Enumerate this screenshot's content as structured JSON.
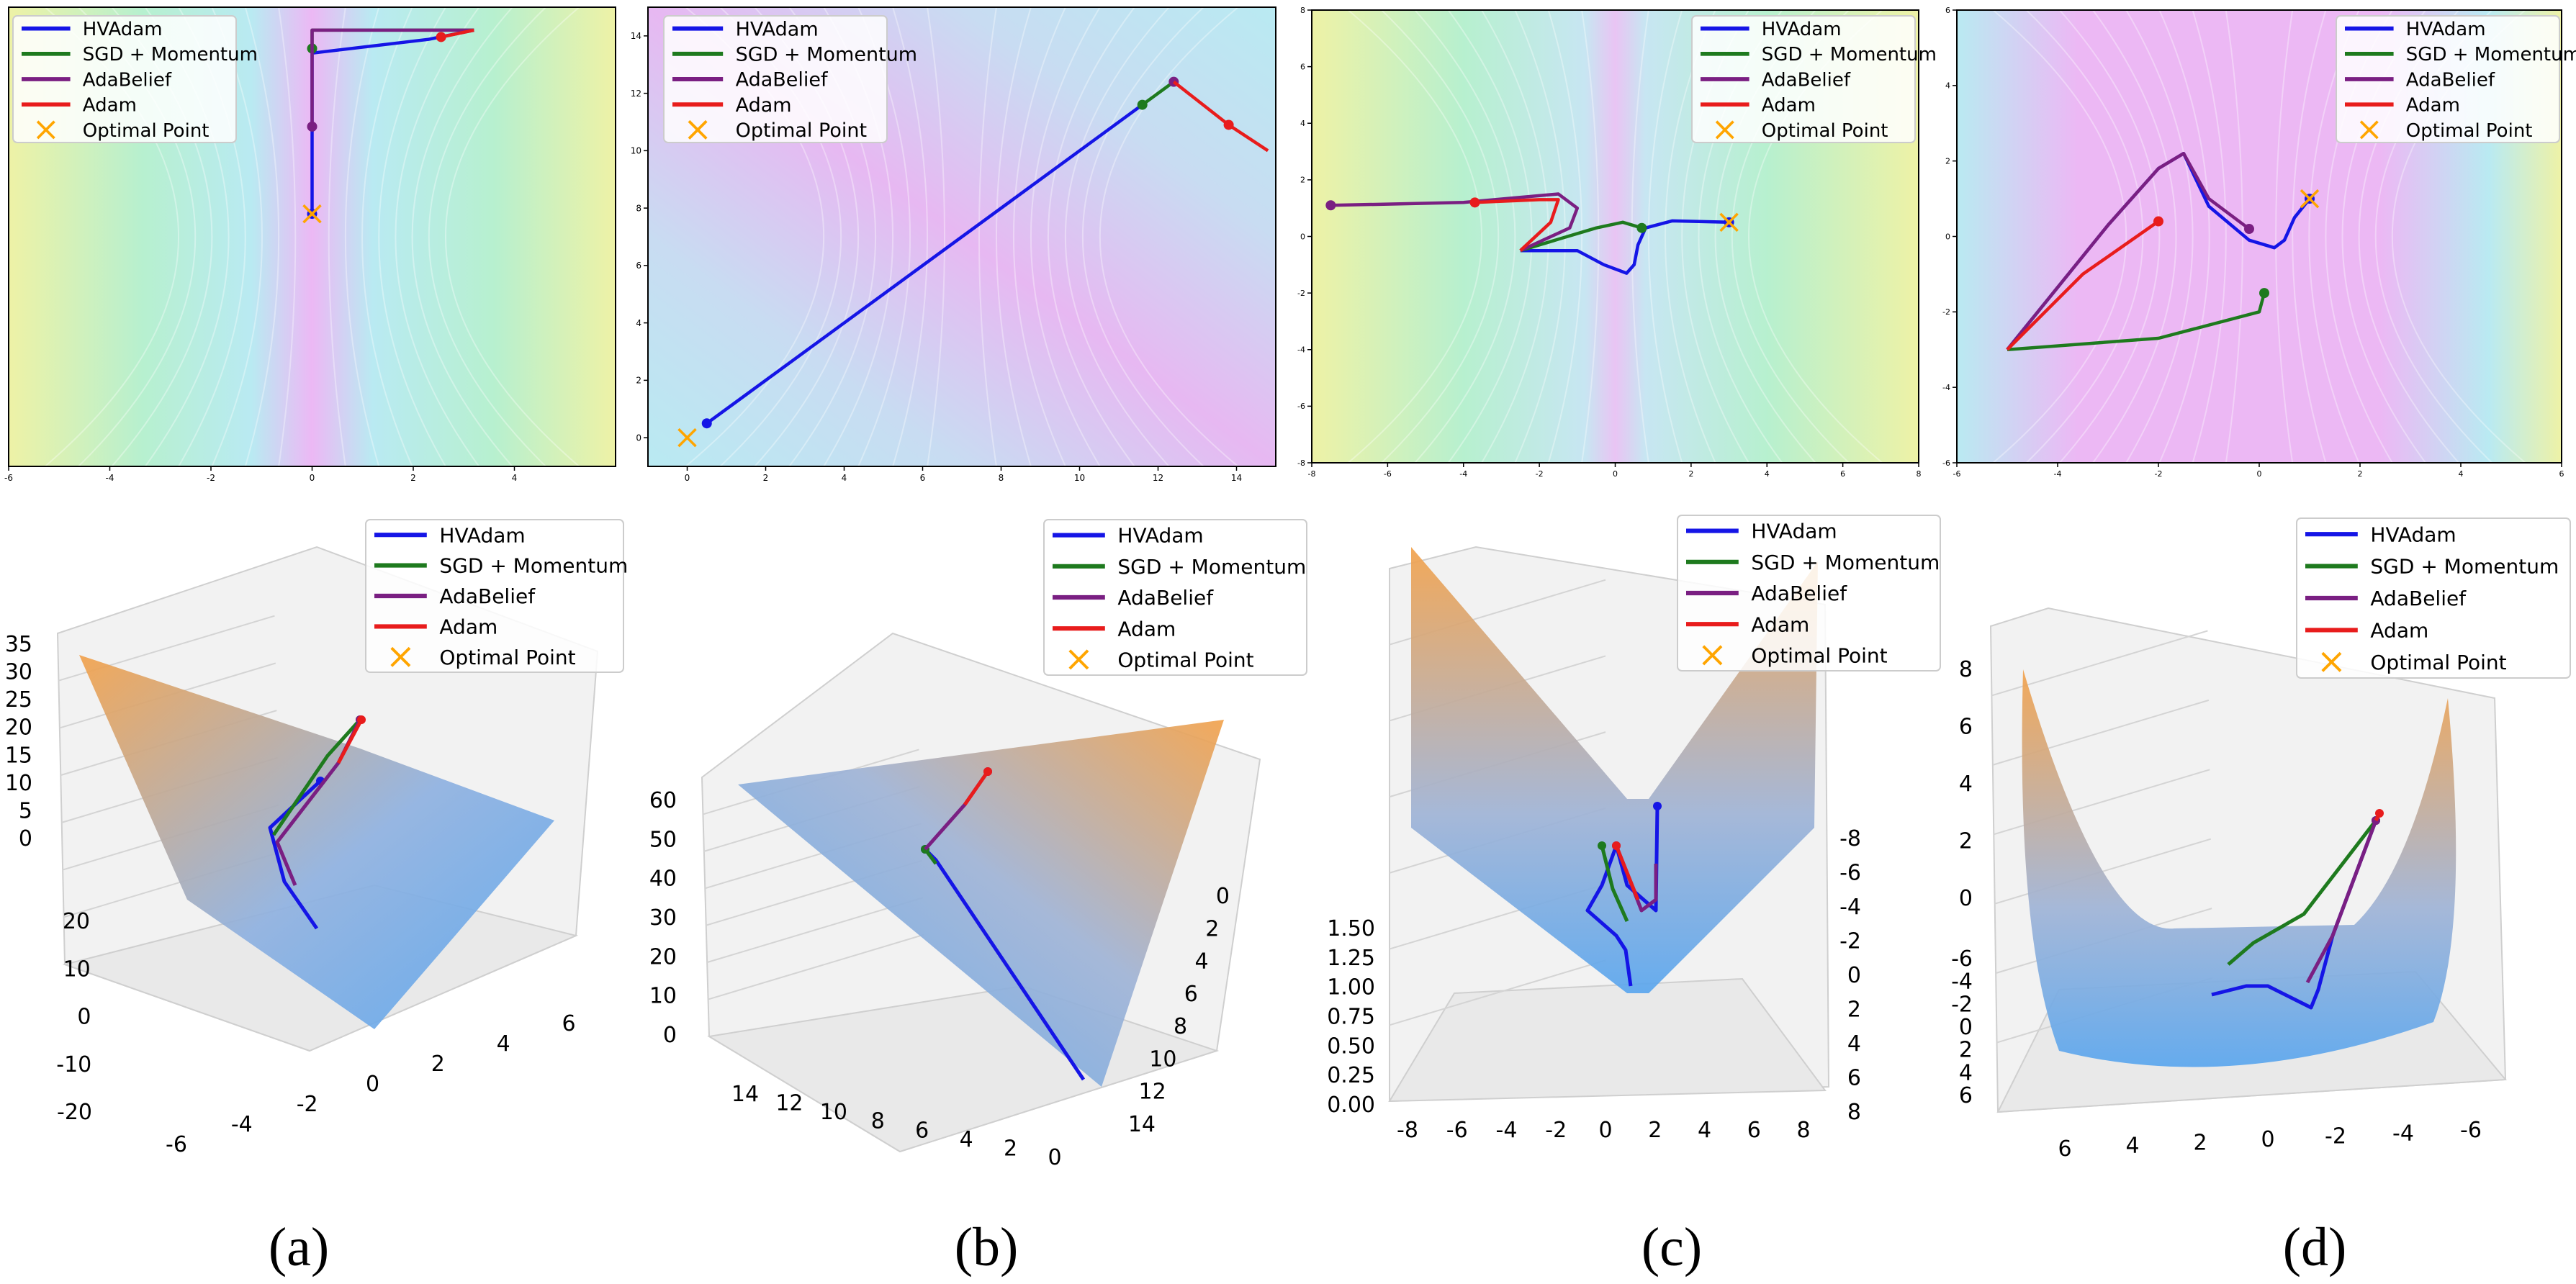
{
  "legend_labels": [
    "HVAdam",
    "SGD + Momentum",
    "AdaBelief",
    "Adam",
    "Optimal Point"
  ],
  "series_colors": {
    "HVAdam": "#1515e6",
    "SGD + Momentum": "#1e7a1e",
    "AdaBelief": "#7a1f82",
    "Adam": "#e81c1c",
    "Optimal Point": "#ffa500"
  },
  "captions": [
    "(a)",
    "(b)",
    "(c)",
    "(d)"
  ],
  "chart_data": [
    {
      "type": "line",
      "panel": "a",
      "view": "contour",
      "title": "",
      "xlabel": "",
      "ylabel": "",
      "xlim": [
        -6,
        6
      ],
      "ylim": [
        -7.5,
        2.5
      ],
      "xticks": [
        "-6",
        "-4",
        "-2",
        "0",
        "2",
        "4"
      ],
      "yticks": [],
      "optimal_point": [
        0,
        -2
      ],
      "series": [
        {
          "name": "HVAdam",
          "x": [
            0,
            0,
            2.3,
            3.2
          ],
          "y": [
            -2,
            1.5,
            1.8,
            2.0
          ],
          "end_marker": [
            0,
            -2
          ]
        },
        {
          "name": "SGD + Momentum",
          "x": [
            0,
            0,
            3.2
          ],
          "y": [
            1.6,
            2.0,
            2.0
          ],
          "end_marker": [
            0,
            1.6
          ]
        },
        {
          "name": "AdaBelief",
          "x": [
            0,
            0,
            0,
            3.2
          ],
          "y": [
            -0.1,
            1.3,
            2.0,
            2.0
          ],
          "end_marker": [
            0,
            -0.1
          ]
        },
        {
          "name": "Adam",
          "x": [
            2.55,
            3.2
          ],
          "y": [
            1.85,
            2.0
          ],
          "end_marker": [
            2.55,
            1.85
          ]
        }
      ]
    },
    {
      "type": "line",
      "panel": "b",
      "view": "contour",
      "title": "",
      "xlabel": "",
      "ylabel": "",
      "xlim": [
        -1,
        15
      ],
      "ylim": [
        -1,
        15
      ],
      "xticks": [
        "0",
        "2",
        "4",
        "6",
        "8",
        "10",
        "12",
        "14"
      ],
      "yticks": [
        "0",
        "2",
        "4",
        "6",
        "8",
        "10",
        "12",
        "14"
      ],
      "optimal_point": [
        0,
        0
      ],
      "series": [
        {
          "name": "HVAdam",
          "x": [
            0.5,
            11.6
          ],
          "y": [
            0.5,
            11.6
          ],
          "end_marker": [
            0.5,
            0.5
          ]
        },
        {
          "name": "SGD + Momentum",
          "x": [
            11.6,
            12.4
          ],
          "y": [
            11.6,
            12.4
          ],
          "end_marker": [
            11.6,
            11.6
          ]
        },
        {
          "name": "AdaBelief",
          "x": [
            12.4
          ],
          "y": [
            12.4
          ],
          "end_marker": [
            12.4,
            12.4
          ]
        },
        {
          "name": "Adam",
          "x": [
            12.4,
            13.8,
            14.8
          ],
          "y": [
            12.4,
            10.9,
            10.0
          ],
          "end_marker": [
            13.8,
            10.9
          ]
        }
      ]
    },
    {
      "type": "line",
      "panel": "c",
      "view": "contour",
      "title": "",
      "xlabel": "",
      "ylabel": "",
      "xlim": [
        -8,
        8
      ],
      "ylim": [
        -8,
        8
      ],
      "xticks": [
        "-8",
        "-6",
        "-4",
        "-2",
        "0",
        "2",
        "4",
        "6",
        "8"
      ],
      "yticks": [
        "8",
        "6",
        "4",
        "2",
        "0",
        "-2",
        "-4",
        "-6",
        "-8"
      ],
      "optimal_point": [
        3,
        0.5
      ],
      "series": [
        {
          "name": "HVAdam",
          "x": [
            3,
            1.5,
            0.8,
            0.6,
            0.5,
            0.3,
            -0.3,
            -1,
            -2.5
          ],
          "y": [
            0.5,
            0.55,
            0.3,
            -0.3,
            -1.0,
            -1.3,
            -1.0,
            -0.5,
            -0.5
          ],
          "end_marker": [
            3,
            0.5
          ]
        },
        {
          "name": "SGD + Momentum",
          "x": [
            -2.5,
            -1.5,
            -0.5,
            0.2,
            0.7
          ],
          "y": [
            -0.5,
            -0.1,
            0.3,
            0.5,
            0.3
          ],
          "end_marker": [
            0.7,
            0.3
          ]
        },
        {
          "name": "AdaBelief",
          "x": [
            -7.5,
            -4,
            -1.5,
            -1.0,
            -1.2,
            -2.5
          ],
          "y": [
            1.1,
            1.2,
            1.5,
            1.0,
            0.3,
            -0.5
          ],
          "end_marker": [
            -7.5,
            1.1
          ]
        },
        {
          "name": "Adam",
          "x": [
            -3.7,
            -2.0,
            -1.5,
            -1.7,
            -2.5
          ],
          "y": [
            1.2,
            1.3,
            1.3,
            0.5,
            -0.5
          ],
          "end_marker": [
            -3.7,
            1.2
          ]
        }
      ]
    },
    {
      "type": "line",
      "panel": "d",
      "view": "contour",
      "title": "",
      "xlabel": "",
      "ylabel": "",
      "xlim": [
        -6,
        6
      ],
      "ylim": [
        -6,
        6
      ],
      "xticks": [
        "-6",
        "-4",
        "-2",
        "0",
        "2",
        "4",
        "6"
      ],
      "yticks": [
        "6",
        "4",
        "2",
        "0",
        "-2",
        "-4",
        "-6"
      ],
      "optimal_point": [
        1,
        1
      ],
      "series": [
        {
          "name": "HVAdam",
          "x": [
            1,
            0.7,
            0.5,
            0.3,
            -0.2,
            -1.0,
            -1.5,
            -2.0,
            -3.0,
            -5.0
          ],
          "y": [
            1,
            0.5,
            -0.1,
            -0.3,
            -0.1,
            0.8,
            2.2,
            1.8,
            0.3,
            -3.0
          ],
          "end_marker": [
            1,
            1
          ]
        },
        {
          "name": "SGD + Momentum",
          "x": [
            -5.0,
            -2.0,
            0,
            0.1
          ],
          "y": [
            -3.0,
            -2.7,
            -2.0,
            -1.5
          ],
          "end_marker": [
            0.1,
            -1.5
          ]
        },
        {
          "name": "AdaBelief",
          "x": [
            -5.0,
            -3.0,
            -2.0,
            -1.5,
            -1.0,
            -0.2
          ],
          "y": [
            -3.0,
            0.3,
            1.8,
            2.2,
            1.0,
            0.2
          ],
          "end_marker": [
            -0.2,
            0.2
          ]
        },
        {
          "name": "Adam",
          "x": [
            -5.0,
            -3.5,
            -2.0
          ],
          "y": [
            -3.0,
            -1.0,
            0.4
          ],
          "end_marker": [
            -2.0,
            0.4
          ]
        }
      ]
    },
    {
      "type": "line",
      "panel": "a",
      "view": "surface-3d",
      "title": "",
      "xlabel": "",
      "ylabel": "",
      "zlabel": "",
      "xticks": [
        "-6",
        "-4",
        "-2",
        "0",
        "2",
        "4",
        "6"
      ],
      "yticks": [
        "20",
        "10",
        "0",
        "-10",
        "-20"
      ],
      "zticks": [
        "35",
        "30",
        "25",
        "20",
        "15",
        "10",
        "5",
        "0"
      ],
      "series": [
        {
          "name": "HVAdam"
        },
        {
          "name": "SGD + Momentum"
        },
        {
          "name": "AdaBelief"
        },
        {
          "name": "Adam"
        }
      ]
    },
    {
      "type": "line",
      "panel": "b",
      "view": "surface-3d",
      "title": "",
      "xlabel": "",
      "ylabel": "",
      "zlabel": "",
      "xticks": [
        "14",
        "12",
        "10",
        "8",
        "6",
        "4",
        "2",
        "0"
      ],
      "yticks": [
        "14",
        "12",
        "10",
        "8",
        "6",
        "4",
        "2",
        "0"
      ],
      "zticks": [
        "60",
        "50",
        "40",
        "30",
        "20",
        "10",
        "0"
      ],
      "series": [
        {
          "name": "HVAdam"
        },
        {
          "name": "SGD + Momentum"
        },
        {
          "name": "AdaBelief"
        },
        {
          "name": "Adam"
        }
      ]
    },
    {
      "type": "line",
      "panel": "c",
      "view": "surface-3d",
      "title": "",
      "xlabel": "",
      "ylabel": "",
      "zlabel": "",
      "xticks": [
        "-8",
        "-6",
        "-4",
        "-2",
        "0",
        "2",
        "4",
        "6",
        "8"
      ],
      "yticks": [
        "-8",
        "-6",
        "-4",
        "-2",
        "0",
        "2",
        "4",
        "6",
        "8"
      ],
      "zticks": [
        "1.50",
        "1.25",
        "1.00",
        "0.75",
        "0.50",
        "0.25",
        "0.00"
      ],
      "series": [
        {
          "name": "HVAdam"
        },
        {
          "name": "SGD + Momentum"
        },
        {
          "name": "AdaBelief"
        },
        {
          "name": "Adam"
        }
      ]
    },
    {
      "type": "line",
      "panel": "d",
      "view": "surface-3d",
      "title": "",
      "xlabel": "",
      "ylabel": "",
      "zlabel": "",
      "xticks": [
        "6",
        "4",
        "2",
        "0",
        "-2",
        "-4",
        "-6"
      ],
      "yticks": [
        "-6",
        "-4",
        "-2",
        "0",
        "2",
        "4",
        "6"
      ],
      "zticks": [
        "8",
        "6",
        "4",
        "2",
        "0"
      ],
      "series": [
        {
          "name": "HVAdam"
        },
        {
          "name": "SGD + Momentum"
        },
        {
          "name": "AdaBelief"
        },
        {
          "name": "Adam"
        }
      ]
    }
  ]
}
